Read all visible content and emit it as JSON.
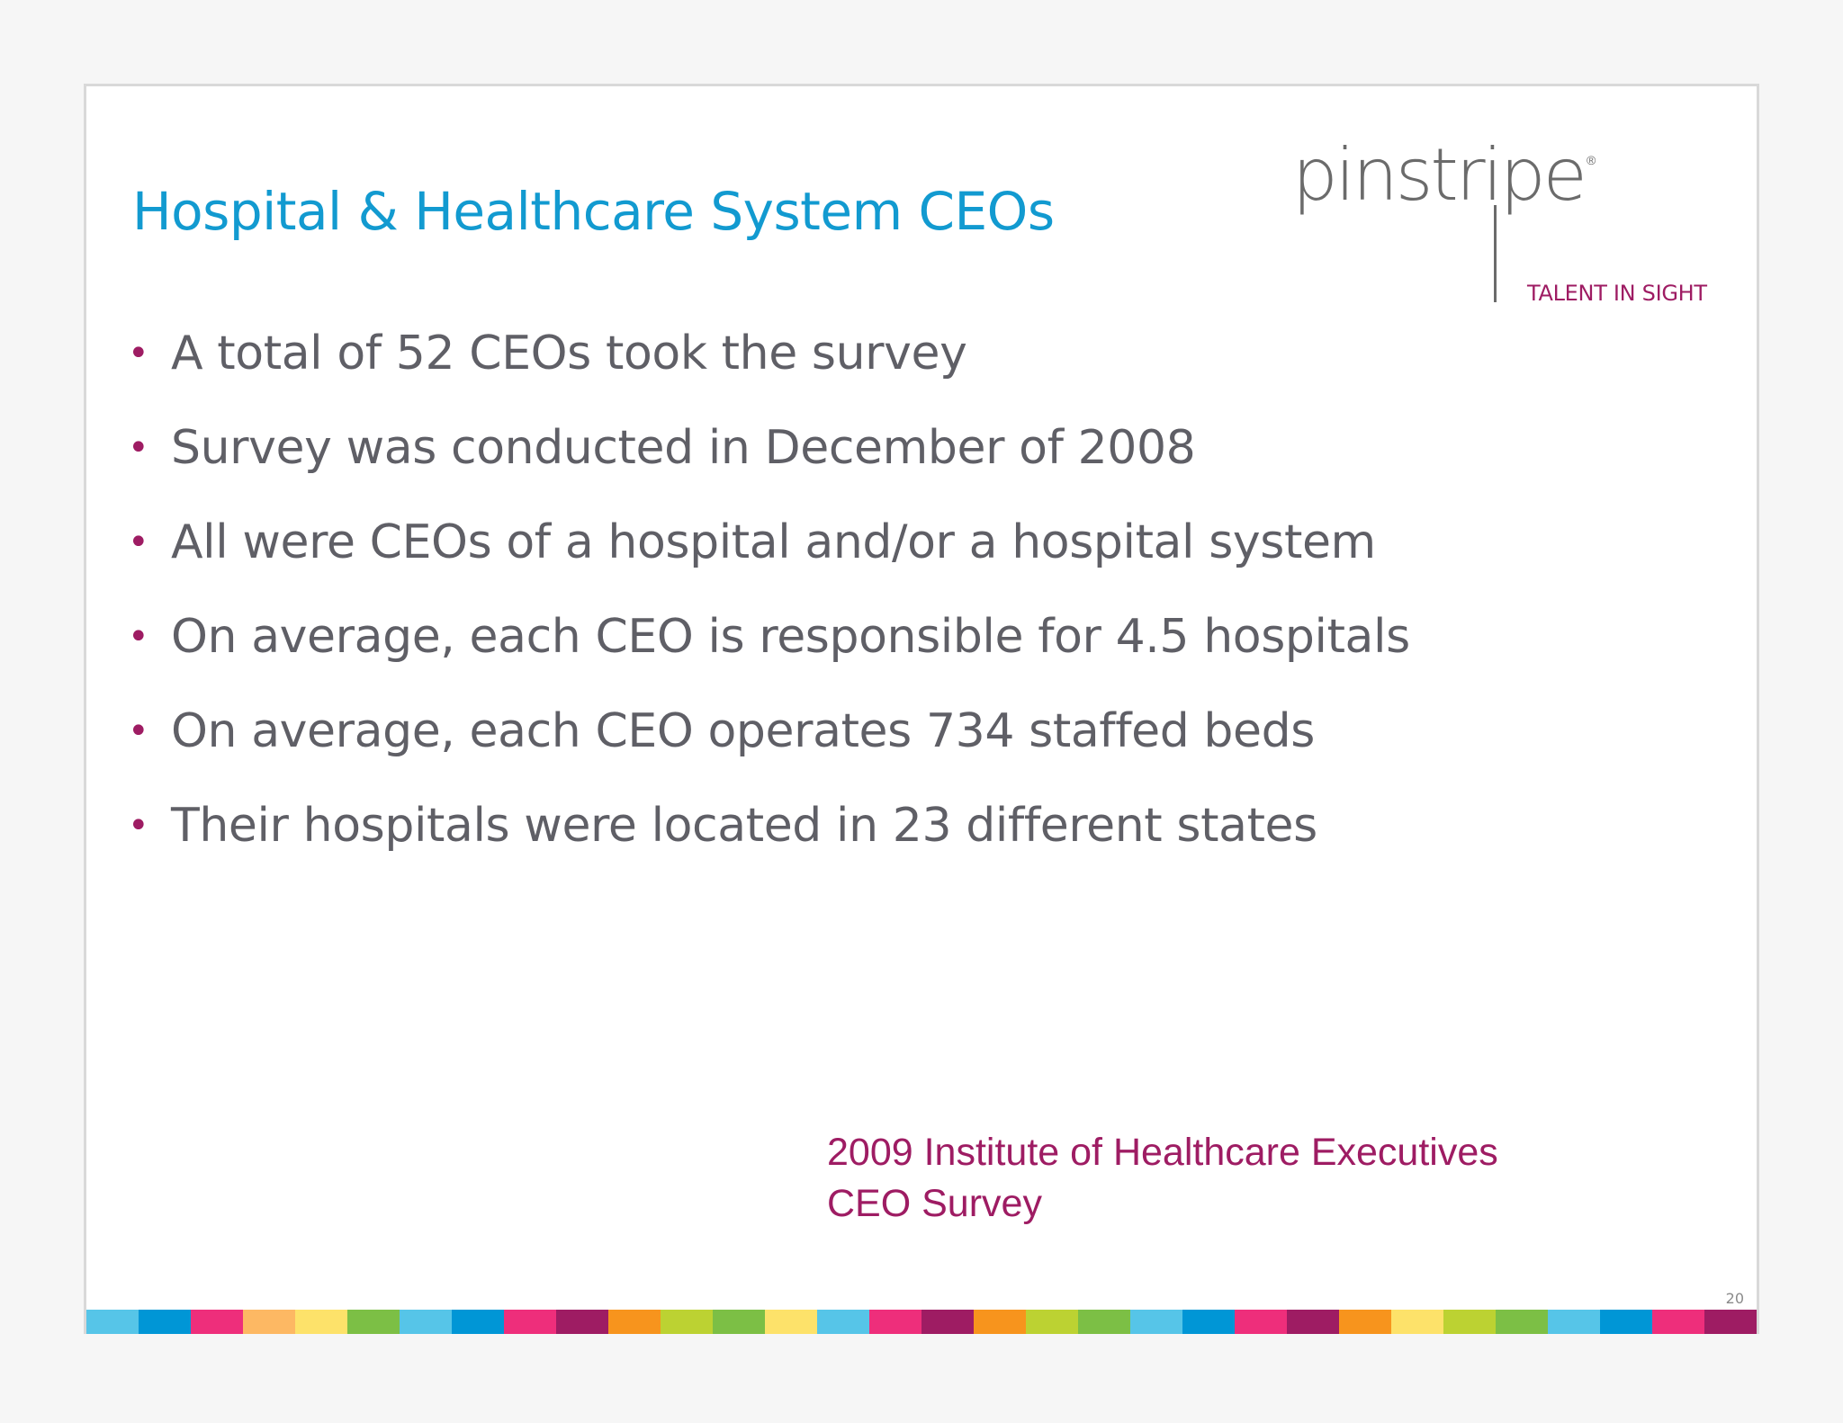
{
  "slide": {
    "title": "Hospital & Healthcare System CEOs",
    "bullet_symbol": "•",
    "bullets": [
      "A total of 52 CEOs took the survey",
      "Survey was conducted in December of 2008",
      "All were CEOs of a hospital and/or a hospital system",
      "On average, each CEO is responsible for 4.5 hospitals",
      "On average, each CEO operates 734 staffed beds",
      "Their hospitals were located in 23 different states"
    ],
    "source": {
      "line1": "2009 Institute of Healthcare Executives",
      "line2": "CEO Survey"
    },
    "page_number": "20"
  },
  "logo": {
    "wordmark": "pinstripe",
    "registered": "®",
    "tagline": "TALENT IN SIGHT"
  },
  "colors": {
    "title": "#129ad0",
    "accent": "#9e1c63",
    "body_text": "#5f5f66",
    "stripe": [
      "#56c5e8",
      "#0096d6",
      "#ee2e7b",
      "#fdb863",
      "#fde26a",
      "#7cbf45",
      "#56c5e8",
      "#0096d6",
      "#ee2e7b",
      "#9e1c63",
      "#f7941d",
      "#bcd232",
      "#7cbf45",
      "#fde26a",
      "#56c5e8",
      "#ee2e7b",
      "#9e1c63",
      "#f7941d",
      "#bcd232",
      "#7cbf45",
      "#56c5e8",
      "#0096d6",
      "#ee2e7b",
      "#9e1c63",
      "#f7941d",
      "#fde26a",
      "#bcd232",
      "#7cbf45",
      "#56c5e8",
      "#0096d6",
      "#ee2e7b",
      "#9e1c63"
    ]
  }
}
